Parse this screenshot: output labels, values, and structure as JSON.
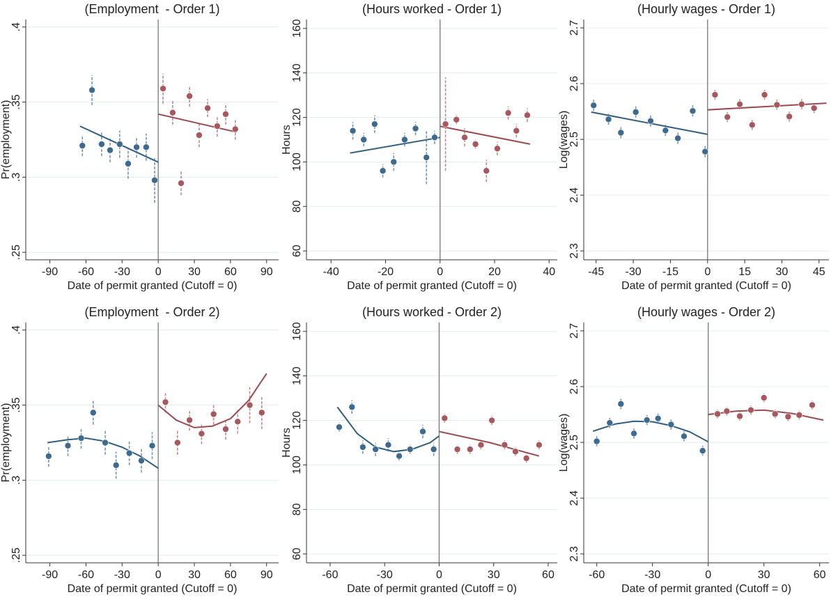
{
  "chart_data": [
    {
      "type": "scatter",
      "title": "(Employment  - Order 1)",
      "x_label": "Date of permit granted (Cutoff = 0)",
      "y_label": "Pr(employment)",
      "xlim": [
        -110,
        100
      ],
      "xticks": [
        -90,
        -60,
        -30,
        0,
        30,
        60,
        90
      ],
      "ylim": [
        0.245,
        0.405
      ],
      "yticks": [
        {
          "value": 0.25,
          "label": ".25"
        },
        {
          "value": 0.3,
          "label": ".3"
        },
        {
          "value": 0.35,
          "label": ".35"
        },
        {
          "value": 0.4,
          "label": ".4"
        }
      ],
      "grid": true,
      "cutoff_x": 0,
      "series": [
        {
          "color": "#3d6a8f",
          "x": [
            -63,
            -55,
            -47,
            -40,
            -32,
            -25,
            -18,
            -10,
            -3
          ],
          "values": [
            0.321,
            0.358,
            0.322,
            0.318,
            0.322,
            0.309,
            0.32,
            0.32,
            0.298
          ],
          "errors": [
            0.007,
            0.01,
            0.008,
            0.008,
            0.009,
            0.01,
            0.007,
            0.009,
            0.015
          ]
        },
        {
          "color": "#a6585c",
          "x": [
            4,
            12,
            19,
            26,
            34,
            41,
            49,
            56,
            64
          ],
          "values": [
            0.359,
            0.343,
            0.296,
            0.354,
            0.328,
            0.346,
            0.334,
            0.342,
            0.332
          ],
          "errors": [
            0.01,
            0.008,
            0.008,
            0.007,
            0.008,
            0.006,
            0.007,
            0.007,
            0.007
          ]
        }
      ],
      "fits": [
        {
          "color": "#2e5f82",
          "x": [
            -65,
            0
          ],
          "values": [
            0.334,
            0.31
          ]
        },
        {
          "color": "#9c4a4f",
          "x": [
            0,
            65
          ],
          "values": [
            0.342,
            0.33
          ]
        }
      ]
    },
    {
      "type": "scatter",
      "title": "(Hours worked - Order 1)",
      "x_label": "Date of permit granted (Cutoff = 0)",
      "y_label": "Hours",
      "xlim": [
        -49,
        43
      ],
      "xticks": [
        -40,
        -20,
        0,
        20,
        40
      ],
      "ylim": [
        56,
        164
      ],
      "yticks": [
        60,
        80,
        100,
        120,
        140,
        160
      ],
      "grid": true,
      "cutoff_x": 0,
      "series": [
        {
          "color": "#3d6a8f",
          "x": [
            -32,
            -28,
            -24,
            -21,
            -17,
            -13,
            -9,
            -5,
            -2
          ],
          "values": [
            114,
            110,
            117,
            96,
            100,
            110,
            115,
            102,
            111
          ],
          "errors": [
            4,
            3,
            4,
            3,
            4,
            3,
            3,
            12,
            3
          ]
        },
        {
          "color": "#a6585c",
          "x": [
            2,
            6,
            9,
            13,
            17,
            21,
            25,
            28,
            32
          ],
          "values": [
            117,
            119,
            111,
            108,
            96,
            106,
            122,
            114,
            121
          ],
          "errors": [
            21,
            2,
            4,
            2,
            5,
            3,
            3,
            3,
            3
          ]
        }
      ],
      "fits": [
        {
          "color": "#2e5f82",
          "x": [
            -33,
            0
          ],
          "values": [
            104,
            111
          ]
        },
        {
          "color": "#9c4a4f",
          "x": [
            0,
            33
          ],
          "values": [
            116,
            108
          ]
        }
      ]
    },
    {
      "type": "scatter",
      "title": "(Hourly wages - Order 1)",
      "x_label": "Date of permit granted (Cutoff = 0)",
      "y_label": "Log(wages)",
      "xlim": [
        -50,
        49
      ],
      "xticks": [
        -45,
        -30,
        -15,
        0,
        15,
        30,
        45
      ],
      "ylim": [
        2.284,
        2.715
      ],
      "yticks": [
        2.3,
        2.4,
        2.5,
        2.6,
        2.7
      ],
      "grid": true,
      "cutoff_x": 0,
      "series": [
        {
          "color": "#3d6a8f",
          "x": [
            -46,
            -40,
            -35,
            -29,
            -23,
            -17,
            -12,
            -6,
            -1
          ],
          "values": [
            2.561,
            2.536,
            2.512,
            2.549,
            2.533,
            2.516,
            2.502,
            2.551,
            2.478
          ],
          "errors": [
            0.01,
            0.01,
            0.01,
            0.01,
            0.01,
            0.01,
            0.01,
            0.01,
            0.01
          ]
        },
        {
          "color": "#a6585c",
          "x": [
            3,
            8,
            13,
            18,
            23,
            28,
            33,
            38,
            43
          ],
          "values": [
            2.58,
            2.54,
            2.563,
            2.526,
            2.58,
            2.562,
            2.541,
            2.563,
            2.556
          ],
          "errors": [
            0.009,
            0.009,
            0.009,
            0.009,
            0.009,
            0.009,
            0.009,
            0.009,
            0.009
          ]
        }
      ],
      "fits": [
        {
          "color": "#2e5f82",
          "x": [
            -47,
            0
          ],
          "values": [
            2.549,
            2.509
          ]
        },
        {
          "color": "#9c4a4f",
          "x": [
            0,
            48
          ],
          "values": [
            2.553,
            2.565
          ]
        }
      ]
    },
    {
      "type": "scatter",
      "title": "(Employment  - Order 2)",
      "x_label": "Date of permit granted (Cutoff = 0)",
      "y_label": "Pr(employment)",
      "xlim": [
        -110,
        100
      ],
      "xticks": [
        -90,
        -60,
        -30,
        0,
        30,
        60,
        90
      ],
      "ylim": [
        0.245,
        0.405
      ],
      "yticks": [
        {
          "value": 0.25,
          "label": ".25"
        },
        {
          "value": 0.3,
          "label": ".3"
        },
        {
          "value": 0.35,
          "label": ".35"
        },
        {
          "value": 0.4,
          "label": ".4"
        }
      ],
      "grid": true,
      "cutoff_x": 0,
      "series": [
        {
          "color": "#3d6a8f",
          "x": [
            -91,
            -75,
            -64,
            -54,
            -44,
            -35,
            -24,
            -14,
            -5
          ],
          "values": [
            0.316,
            0.323,
            0.328,
            0.345,
            0.325,
            0.31,
            0.318,
            0.313,
            0.323
          ],
          "errors": [
            0.007,
            0.007,
            0.007,
            0.008,
            0.008,
            0.009,
            0.008,
            0.008,
            0.009
          ]
        },
        {
          "color": "#a6585c",
          "x": [
            6,
            16,
            26,
            36,
            46,
            56,
            66,
            76,
            86
          ],
          "values": [
            0.352,
            0.325,
            0.34,
            0.331,
            0.344,
            0.334,
            0.339,
            0.35,
            0.345
          ],
          "errors": [
            0.007,
            0.008,
            0.007,
            0.007,
            0.007,
            0.007,
            0.008,
            0.012,
            0.011
          ]
        }
      ],
      "fits": [
        {
          "color": "#2e5f82",
          "x": [
            -92,
            -75,
            -60,
            -45,
            -30,
            -15,
            0
          ],
          "values": [
            0.325,
            0.327,
            0.328,
            0.326,
            0.322,
            0.316,
            0.308
          ]
        },
        {
          "color": "#9c4a4f",
          "x": [
            0,
            15,
            30,
            45,
            60,
            75,
            90
          ],
          "values": [
            0.35,
            0.34,
            0.335,
            0.336,
            0.341,
            0.353,
            0.371
          ]
        }
      ]
    },
    {
      "type": "scatter",
      "title": "(Hours worked - Order 2)",
      "x_label": "Date of permit granted (Cutoff = 0)",
      "y_label": "Hours",
      "xlim": [
        -73,
        65
      ],
      "xticks": [
        -60,
        -30,
        0,
        30,
        60
      ],
      "ylim": [
        56,
        164
      ],
      "yticks": [
        60,
        80,
        100,
        120,
        140,
        160
      ],
      "grid": true,
      "cutoff_x": 0,
      "series": [
        {
          "color": "#3d6a8f",
          "x": [
            -55,
            -48,
            -42,
            -35,
            -28,
            -22,
            -16,
            -9,
            -3
          ],
          "values": [
            117,
            126,
            108,
            107,
            109,
            104,
            107,
            115,
            107
          ],
          "errors": [
            2,
            3,
            3,
            3,
            3,
            2,
            2,
            3,
            3
          ]
        },
        {
          "color": "#a6585c",
          "x": [
            3,
            10,
            17,
            23,
            29,
            36,
            42,
            48,
            55
          ],
          "values": [
            121,
            107,
            107,
            109,
            120,
            109,
            106,
            103,
            109
          ],
          "errors": [
            2,
            2,
            2,
            2,
            2,
            2,
            2,
            2,
            2
          ]
        }
      ],
      "fits": [
        {
          "color": "#2e5f82",
          "x": [
            -56,
            -45,
            -35,
            -25,
            -15,
            -5,
            0
          ],
          "values": [
            126,
            114,
            108,
            106,
            107,
            110,
            113
          ]
        },
        {
          "color": "#9c4a4f",
          "x": [
            0,
            28,
            55
          ],
          "values": [
            115,
            110,
            104
          ]
        }
      ]
    },
    {
      "type": "scatter",
      "title": "(Hourly wages - Order 2)",
      "x_label": "Date of permit granted (Cutoff = 0)",
      "y_label": "Log(wages)",
      "xlim": [
        -67,
        65
      ],
      "xticks": [
        -60,
        -30,
        0,
        30,
        60
      ],
      "ylim": [
        2.284,
        2.715
      ],
      "yticks": [
        2.3,
        2.4,
        2.5,
        2.6,
        2.7
      ],
      "grid": true,
      "cutoff_x": 0,
      "series": [
        {
          "color": "#3d6a8f",
          "x": [
            -60,
            -53,
            -47,
            -40,
            -33,
            -27,
            -20,
            -13,
            -3
          ],
          "values": [
            2.502,
            2.535,
            2.569,
            2.516,
            2.54,
            2.543,
            2.532,
            2.511,
            2.485
          ],
          "errors": [
            0.009,
            0.009,
            0.009,
            0.009,
            0.009,
            0.009,
            0.009,
            0.009,
            0.009
          ]
        },
        {
          "color": "#a6585c",
          "x": [
            5,
            10,
            17,
            23,
            30,
            36,
            43,
            49,
            56
          ],
          "values": [
            2.551,
            2.556,
            2.547,
            2.558,
            2.58,
            2.551,
            2.546,
            2.549,
            2.567
          ],
          "errors": [
            0.008,
            0.008,
            0.008,
            0.008,
            0.008,
            0.008,
            0.008,
            0.008,
            0.008
          ]
        }
      ],
      "fits": [
        {
          "color": "#2e5f82",
          "x": [
            -62,
            -50,
            -40,
            -30,
            -20,
            -10,
            0
          ],
          "values": [
            2.52,
            2.533,
            2.538,
            2.537,
            2.53,
            2.519,
            2.501
          ]
        },
        {
          "color": "#9c4a4f",
          "x": [
            0,
            15,
            30,
            45,
            62
          ],
          "values": [
            2.55,
            2.556,
            2.558,
            2.552,
            2.54
          ]
        }
      ]
    }
  ]
}
